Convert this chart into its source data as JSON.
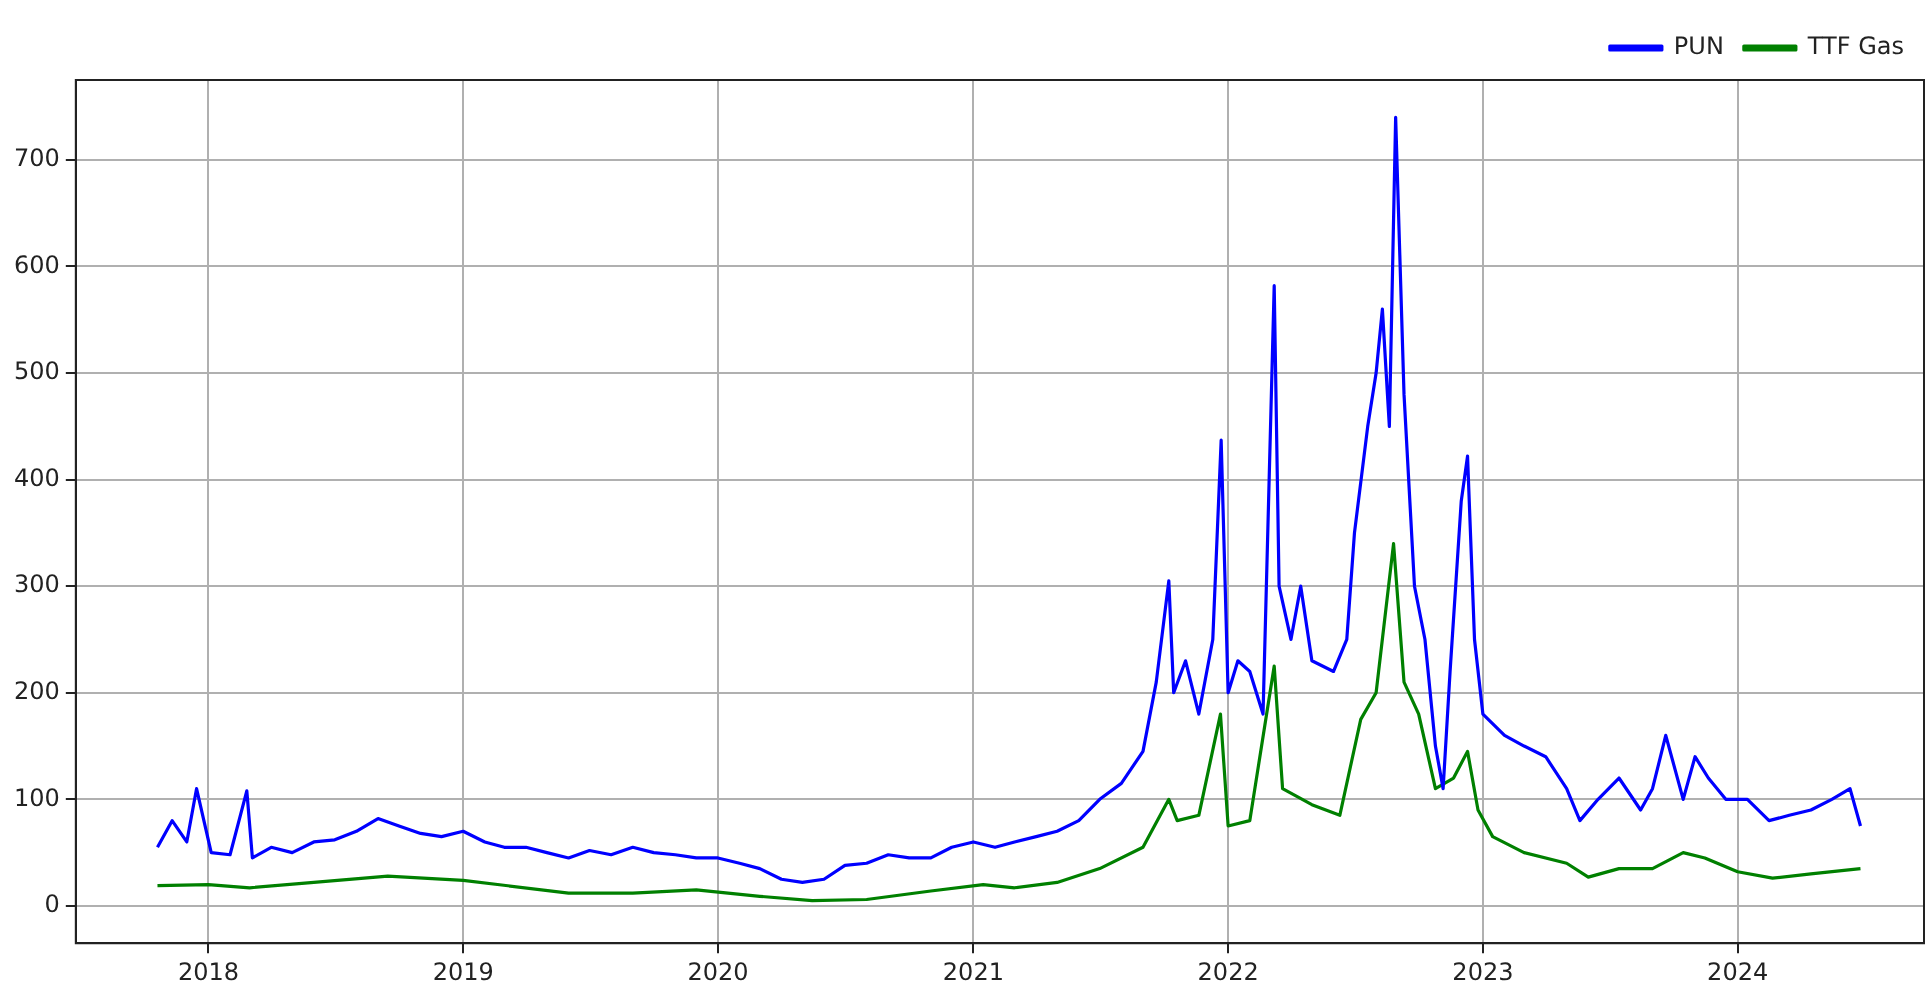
{
  "chart_data": {
    "type": "line",
    "xlim": [
      "2017-06-25",
      "2024-09-24"
    ],
    "xticks": [
      "2018",
      "2019",
      "2020",
      "2021",
      "2022",
      "2023",
      "2024"
    ],
    "ylim": [
      -35,
      775
    ],
    "yticks": [
      0,
      100,
      200,
      300,
      400,
      500,
      600,
      700
    ],
    "grid": true,
    "legend": "top right",
    "marker": "none",
    "line_style": "solid",
    "series": [
      {
        "name": "PUN",
        "color": "#0000ff",
        "x": [
          "2017-10-20",
          "2017-11-10",
          "2017-12-01",
          "2017-12-15",
          "2018-01-05",
          "2018-02-01",
          "2018-02-25",
          "2018-03-05",
          "2018-04-01",
          "2018-05-01",
          "2018-06-01",
          "2018-07-01",
          "2018-08-01",
          "2018-09-01",
          "2018-10-01",
          "2018-11-01",
          "2018-12-01",
          "2019-01-01",
          "2019-02-01",
          "2019-03-01",
          "2019-04-01",
          "2019-05-01",
          "2019-06-01",
          "2019-07-01",
          "2019-08-01",
          "2019-09-01",
          "2019-10-01",
          "2019-11-01",
          "2019-12-01",
          "2020-01-01",
          "2020-02-01",
          "2020-03-01",
          "2020-04-01",
          "2020-05-01",
          "2020-06-01",
          "2020-07-01",
          "2020-08-01",
          "2020-09-01",
          "2020-10-01",
          "2020-11-01",
          "2020-12-01",
          "2021-01-01",
          "2021-02-01",
          "2021-03-01",
          "2021-04-01",
          "2021-05-01",
          "2021-06-01",
          "2021-07-01",
          "2021-08-01",
          "2021-09-01",
          "2021-09-20",
          "2021-10-08",
          "2021-10-15",
          "2021-11-01",
          "2021-11-20",
          "2021-12-10",
          "2021-12-22",
          "2022-01-01",
          "2022-01-15",
          "2022-02-01",
          "2022-02-20",
          "2022-03-08",
          "2022-03-15",
          "2022-04-01",
          "2022-04-15",
          "2022-05-01",
          "2022-06-01",
          "2022-06-20",
          "2022-07-01",
          "2022-07-20",
          "2022-08-01",
          "2022-08-10",
          "2022-08-20",
          "2022-08-29",
          "2022-09-10",
          "2022-09-25",
          "2022-10-10",
          "2022-10-25",
          "2022-11-05",
          "2022-11-15",
          "2022-12-01",
          "2022-12-10",
          "2022-12-20",
          "2023-01-01",
          "2023-02-01",
          "2023-03-01",
          "2023-04-01",
          "2023-05-01",
          "2023-05-20",
          "2023-06-15",
          "2023-07-15",
          "2023-08-15",
          "2023-09-01",
          "2023-09-20",
          "2023-10-15",
          "2023-11-01",
          "2023-11-20",
          "2023-12-15",
          "2024-01-15",
          "2024-02-15",
          "2024-03-15",
          "2024-04-15",
          "2024-05-15",
          "2024-06-10",
          "2024-06-25"
        ],
        "values": [
          55,
          80,
          60,
          110,
          50,
          48,
          108,
          45,
          55,
          50,
          60,
          62,
          70,
          82,
          75,
          68,
          65,
          70,
          60,
          55,
          55,
          50,
          45,
          52,
          48,
          55,
          50,
          48,
          45,
          45,
          40,
          35,
          25,
          22,
          25,
          38,
          40,
          48,
          45,
          45,
          55,
          60,
          55,
          60,
          65,
          70,
          80,
          100,
          115,
          145,
          210,
          305,
          200,
          230,
          180,
          250,
          437,
          200,
          230,
          220,
          180,
          582,
          300,
          250,
          300,
          230,
          220,
          250,
          350,
          450,
          500,
          560,
          450,
          740,
          480,
          300,
          250,
          150,
          110,
          220,
          380,
          422,
          250,
          180,
          160,
          150,
          140,
          110,
          80,
          100,
          120,
          90,
          110,
          160,
          100,
          140,
          120,
          100,
          100,
          80,
          85,
          90,
          100,
          110,
          75
        ]
      },
      {
        "name": "TTF Gas",
        "color": "#008000",
        "x": [
          "2017-10-20",
          "2018-01-01",
          "2018-03-01",
          "2018-06-01",
          "2018-09-15",
          "2019-01-01",
          "2019-06-01",
          "2019-09-01",
          "2019-12-01",
          "2020-03-01",
          "2020-05-15",
          "2020-08-01",
          "2020-11-01",
          "2021-01-15",
          "2021-03-01",
          "2021-05-01",
          "2021-07-01",
          "2021-09-01",
          "2021-10-08",
          "2021-10-20",
          "2021-11-20",
          "2021-12-21",
          "2022-01-01",
          "2022-02-01",
          "2022-03-08",
          "2022-03-20",
          "2022-05-01",
          "2022-06-10",
          "2022-07-10",
          "2022-08-01",
          "2022-08-26",
          "2022-09-10",
          "2022-10-01",
          "2022-10-25",
          "2022-11-20",
          "2022-12-10",
          "2022-12-25",
          "2023-01-15",
          "2023-03-01",
          "2023-05-01",
          "2023-06-01",
          "2023-07-15",
          "2023-09-01",
          "2023-10-15",
          "2023-11-15",
          "2024-01-01",
          "2024-02-20",
          "2024-04-15",
          "2024-06-25"
        ],
        "values": [
          19,
          20,
          17,
          22,
          28,
          24,
          12,
          12,
          15,
          9,
          5,
          6,
          14,
          20,
          17,
          22,
          35,
          55,
          100,
          80,
          85,
          180,
          75,
          80,
          225,
          110,
          95,
          85,
          175,
          200,
          340,
          210,
          180,
          110,
          120,
          145,
          90,
          65,
          50,
          40,
          27,
          35,
          35,
          50,
          45,
          32,
          26,
          30,
          35
        ]
      }
    ]
  }
}
